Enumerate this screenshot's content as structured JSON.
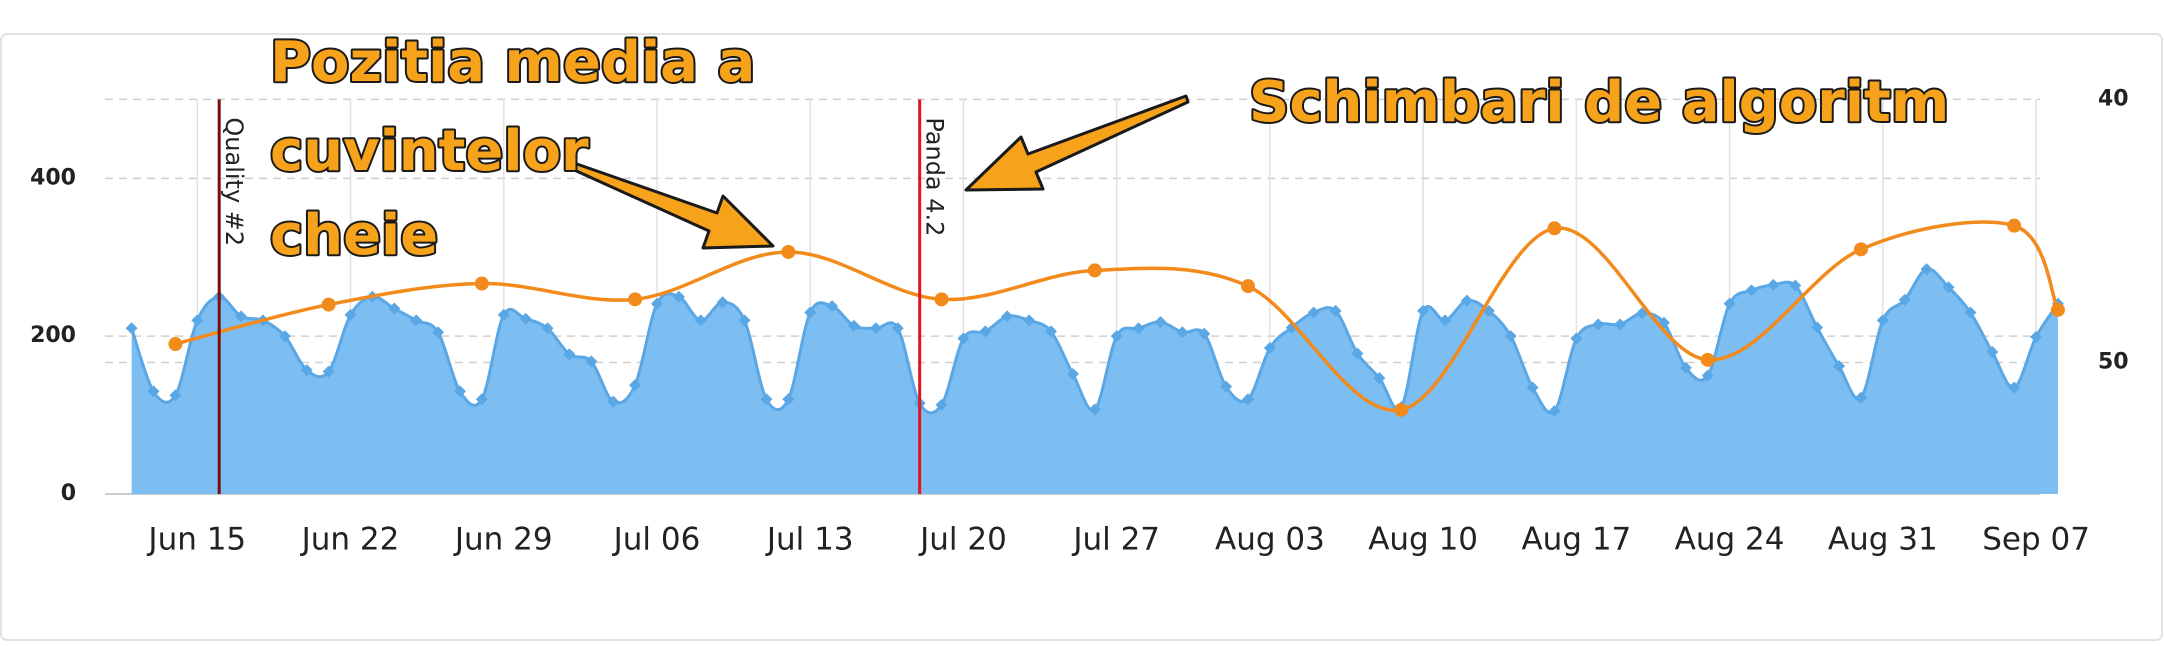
{
  "chart_data": {
    "type": "area-line",
    "categories": [
      null,
      null,
      null,
      "Jun 15",
      null,
      null,
      null,
      null,
      null,
      null,
      "Jun 22",
      null,
      null,
      null,
      null,
      null,
      null,
      "Jun 29",
      null,
      null,
      null,
      null,
      null,
      null,
      "Jul 06",
      null,
      null,
      null,
      null,
      null,
      null,
      "Jul 13",
      null,
      null,
      null,
      null,
      null,
      null,
      "Jul 20",
      null,
      null,
      null,
      null,
      null,
      null,
      "Jul 27",
      null,
      null,
      null,
      null,
      null,
      null,
      "Aug 03",
      null,
      null,
      null,
      null,
      null,
      null,
      "Aug 10",
      null,
      null,
      null,
      null,
      null,
      null,
      "Aug 17",
      null,
      null,
      null,
      null,
      null,
      null,
      "Aug 24",
      null,
      null,
      null,
      null,
      null,
      null,
      "Aug 31",
      null,
      null,
      null,
      null,
      null,
      null,
      "Sep 07",
      null
    ],
    "series": [
      {
        "type": "area",
        "color": "#7cbdf2",
        "line_color": "#5aa7e6",
        "values": [
          210,
          130,
          125,
          220,
          250,
          225,
          220,
          200,
          157,
          155,
          227,
          250,
          235,
          220,
          205,
          130,
          120,
          227,
          222,
          210,
          177,
          168,
          117,
          138,
          241,
          250,
          220,
          243,
          220,
          120,
          120,
          230,
          238,
          213,
          210,
          210,
          115,
          113,
          197,
          206,
          225,
          220,
          206,
          152,
          107,
          200,
          210,
          218,
          205,
          203,
          136,
          120,
          185,
          211,
          230,
          232,
          178,
          147,
          110,
          232,
          220,
          245,
          232,
          200,
          135,
          105,
          197,
          215,
          215,
          229,
          217,
          160,
          150,
          241,
          258,
          265,
          264,
          211,
          162,
          122,
          220,
          246,
          285,
          262,
          230,
          180,
          135,
          199,
          241
        ]
      },
      {
        "type": "line",
        "color": "#f28a1c",
        "axis": "y2",
        "values": [
          null,
          null,
          49.3,
          null,
          null,
          null,
          null,
          null,
          null,
          47.8,
          null,
          null,
          null,
          null,
          null,
          null,
          47.0,
          null,
          null,
          null,
          null,
          null,
          null,
          47.6,
          null,
          null,
          null,
          null,
          null,
          null,
          45.8,
          null,
          null,
          null,
          null,
          null,
          null,
          47.6,
          null,
          null,
          null,
          null,
          null,
          null,
          46.5,
          null,
          null,
          null,
          null,
          null,
          null,
          47.1,
          null,
          null,
          null,
          null,
          null,
          null,
          51.8,
          null,
          null,
          null,
          null,
          null,
          null,
          44.9,
          null,
          null,
          null,
          null,
          null,
          null,
          49.9,
          null,
          null,
          null,
          null,
          null,
          null,
          45.7,
          null,
          null,
          null,
          null,
          null,
          null,
          44.8,
          null,
          48.0
        ]
      }
    ],
    "ylim": [
      0,
      500
    ],
    "yticks": [
      0,
      200,
      400
    ],
    "y2lim": [
      55,
      40
    ],
    "y2ticks": [
      40,
      50
    ],
    "grid": true,
    "annotations": [
      {
        "label": "Quality #2",
        "category": 4,
        "color": "#7d0c0c"
      },
      {
        "label": "Panda 4.2",
        "category": 36,
        "color": "#e3141b"
      }
    ],
    "callouts": [
      "Pozitia media a",
      "cuvintelor",
      "cheie",
      "Schimbari de algoritm"
    ]
  }
}
